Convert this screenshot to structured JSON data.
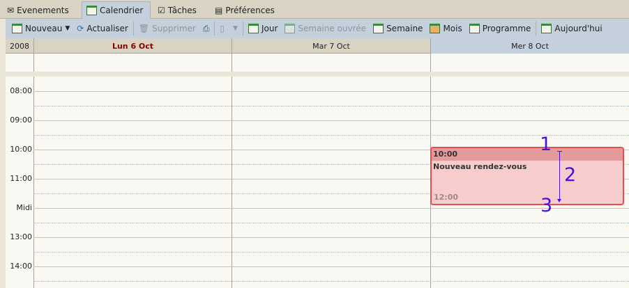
{
  "tabs": [
    {
      "label": "Evenements",
      "icon": "envelope-icon"
    },
    {
      "label": "Calendrier",
      "icon": "calendar-icon",
      "active": true
    },
    {
      "label": "Tâches",
      "icon": "checklist-icon"
    },
    {
      "label": "Préférences",
      "icon": "document-icon"
    }
  ],
  "toolbar": {
    "new": "Nouveau",
    "refresh": "Actualiser",
    "delete": "Supprimer",
    "day": "Jour",
    "workweek": "Semaine ouvrée",
    "week": "Semaine",
    "month": "Mois",
    "schedule": "Programme",
    "today": "Aujourd'hui"
  },
  "header": {
    "year": "2008",
    "days": [
      "Lun 6 Oct",
      "Mar 7 Oct",
      "Mer 8 Oct"
    ],
    "today_color": "#8b0000"
  },
  "hours": [
    "08:00",
    "09:00",
    "10:00",
    "11:00",
    "Midi",
    "13:00",
    "14:00"
  ],
  "event": {
    "start": "10:00",
    "title": "Nouveau rendez-vous",
    "end": "12:00",
    "color": "#e05050"
  },
  "annotations": [
    "1",
    "2",
    "3"
  ]
}
